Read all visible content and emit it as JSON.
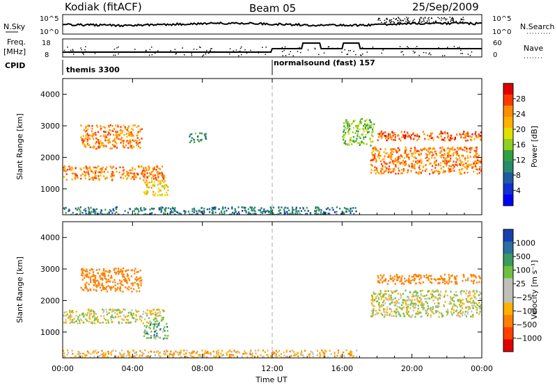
{
  "header": {
    "station": "Kodiak (fitACF)",
    "beam": "Beam 05",
    "date": "25/Sep/2009"
  },
  "strip_labels": {
    "nsky": "N.Sky",
    "nsky_top": "10^5",
    "nsky_bottom": "10^0",
    "nsearch": "N.Search",
    "nsearch_top": "10^5",
    "nsearch_bottom": "10^0",
    "freq": "Freq.",
    "freq_unit": "[MHz]",
    "freq_top": "18",
    "freq_bottom": "8",
    "nave": "Nave",
    "nave_top": "60",
    "nave_bottom": "0",
    "cpid": "CPID",
    "cpid_mode1": "themis 3300",
    "cpid_mode2": "normalsound (fast) 157"
  },
  "colorbars": {
    "power": {
      "label": "Power [dB]",
      "ticks": [
        "28",
        "24",
        "20",
        "16",
        "12",
        "8",
        "4"
      ],
      "colors": [
        "#e00000",
        "#ff3800",
        "#ff8c00",
        "#ffb000",
        "#e0e000",
        "#90d020",
        "#30a040",
        "#2a8a6a",
        "#205aa0",
        "#1030d0",
        "#0000ff"
      ]
    },
    "velocity": {
      "label": "Velocity [m s⁻¹]",
      "ticks": [
        "1000",
        "500",
        "100",
        "25",
        "−25",
        "−100",
        "−500",
        "−1000"
      ],
      "colors": [
        "#1840b0",
        "#2a70a0",
        "#3a9a60",
        "#70c040",
        "#c0c0b8",
        "#c0c0b8",
        "#ffb000",
        "#ff8000",
        "#ff4000",
        "#e00000"
      ]
    }
  },
  "chart_data": [
    {
      "type": "heatmap",
      "panel": "power",
      "ylabel": "Slant Range [km]",
      "xlabel": "Time UT",
      "xticks": [
        "00:00",
        "04:00",
        "08:00",
        "12:00",
        "16:00",
        "20:00",
        "00:00"
      ],
      "xlim_hours": [
        0,
        24
      ],
      "ylim_km": [
        180,
        4500
      ],
      "yticks": [
        1000,
        2000,
        3000,
        4000
      ],
      "mode_change_hour": 12,
      "echo_regions": [
        {
          "t0": 0.0,
          "t1": 5.8,
          "r0": 1300,
          "r1": 1750,
          "level": 24
        },
        {
          "t0": 1.0,
          "t1": 4.5,
          "r0": 2300,
          "r1": 3050,
          "level": 24
        },
        {
          "t0": 4.6,
          "t1": 6.0,
          "r0": 800,
          "r1": 1300,
          "level": 20
        },
        {
          "t0": 7.2,
          "t1": 8.2,
          "r0": 2500,
          "r1": 2800,
          "level": 10
        },
        {
          "t0": 0.0,
          "t1": 16.8,
          "r0": 200,
          "r1": 450,
          "level": 8
        },
        {
          "t0": 16.0,
          "t1": 17.8,
          "r0": 2400,
          "r1": 3250,
          "level": 14
        },
        {
          "t0": 17.6,
          "t1": 24.0,
          "r0": 1500,
          "r1": 2350,
          "level": 24
        },
        {
          "t0": 18.0,
          "t1": 24.0,
          "r0": 2550,
          "r1": 2850,
          "level": 26
        }
      ]
    },
    {
      "type": "heatmap",
      "panel": "velocity",
      "ylabel": "Slant Range [km]",
      "xlabel": "Time UT",
      "xticks": [
        "00:00",
        "04:00",
        "08:00",
        "12:00",
        "16:00",
        "20:00",
        "00:00"
      ],
      "xlim_hours": [
        0,
        24
      ],
      "ylim_km": [
        180,
        4500
      ],
      "yticks": [
        1000,
        2000,
        3000,
        4000
      ],
      "mode_change_hour": 12,
      "echo_regions": [
        {
          "t0": 0.0,
          "t1": 5.8,
          "r0": 1300,
          "r1": 1750,
          "value": 0
        },
        {
          "t0": 1.0,
          "t1": 4.5,
          "r0": 2300,
          "r1": 3050,
          "value": -300
        },
        {
          "t0": 4.6,
          "t1": 6.0,
          "r0": 800,
          "r1": 1300,
          "value": 60
        },
        {
          "t0": 0.0,
          "t1": 16.8,
          "r0": 200,
          "r1": 450,
          "value": -60
        },
        {
          "t0": 17.6,
          "t1": 24.0,
          "r0": 1500,
          "r1": 2350,
          "value": 0
        },
        {
          "t0": 18.0,
          "t1": 24.0,
          "r0": 2550,
          "r1": 2850,
          "value": -300
        }
      ]
    }
  ]
}
